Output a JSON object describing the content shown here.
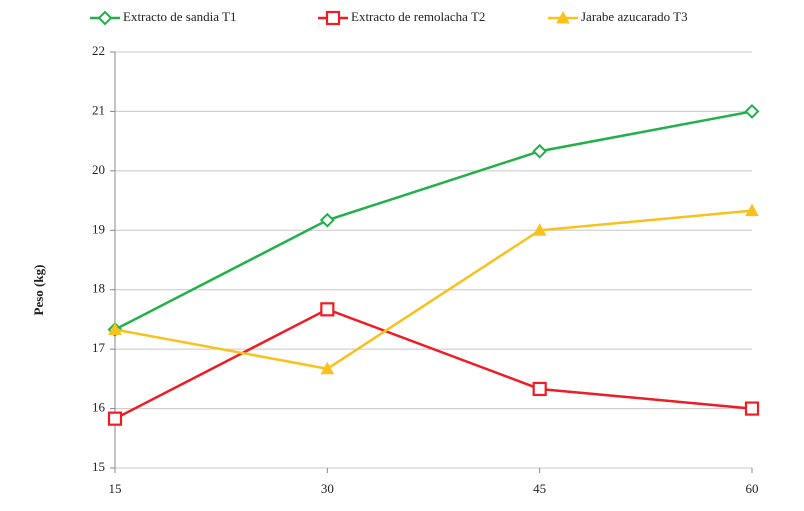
{
  "chart_data": {
    "type": "line",
    "y_label": "Peso (kg)",
    "x": [
      15,
      30,
      45,
      60
    ],
    "xlim": [
      15,
      60
    ],
    "xticks": [
      15,
      30,
      45,
      60
    ],
    "ylim": [
      15,
      22
    ],
    "yticks": [
      15,
      16,
      17,
      18,
      19,
      20,
      21,
      22
    ],
    "grid": true,
    "legend": "top",
    "series": [
      {
        "name": "Extracto de sandia T1",
        "color": "#22b04b",
        "marker": "diamond",
        "values": [
          17.33,
          19.17,
          20.33,
          21.0
        ]
      },
      {
        "name": "Extracto de remolacha T2",
        "color": "#ee1c24",
        "marker": "square",
        "values": [
          15.83,
          17.67,
          16.33,
          16.0
        ]
      },
      {
        "name": "Jarabe azucarado T3",
        "color": "#f9c11c",
        "marker": "triangle",
        "values": [
          17.33,
          16.67,
          19.0,
          19.33
        ]
      }
    ]
  }
}
